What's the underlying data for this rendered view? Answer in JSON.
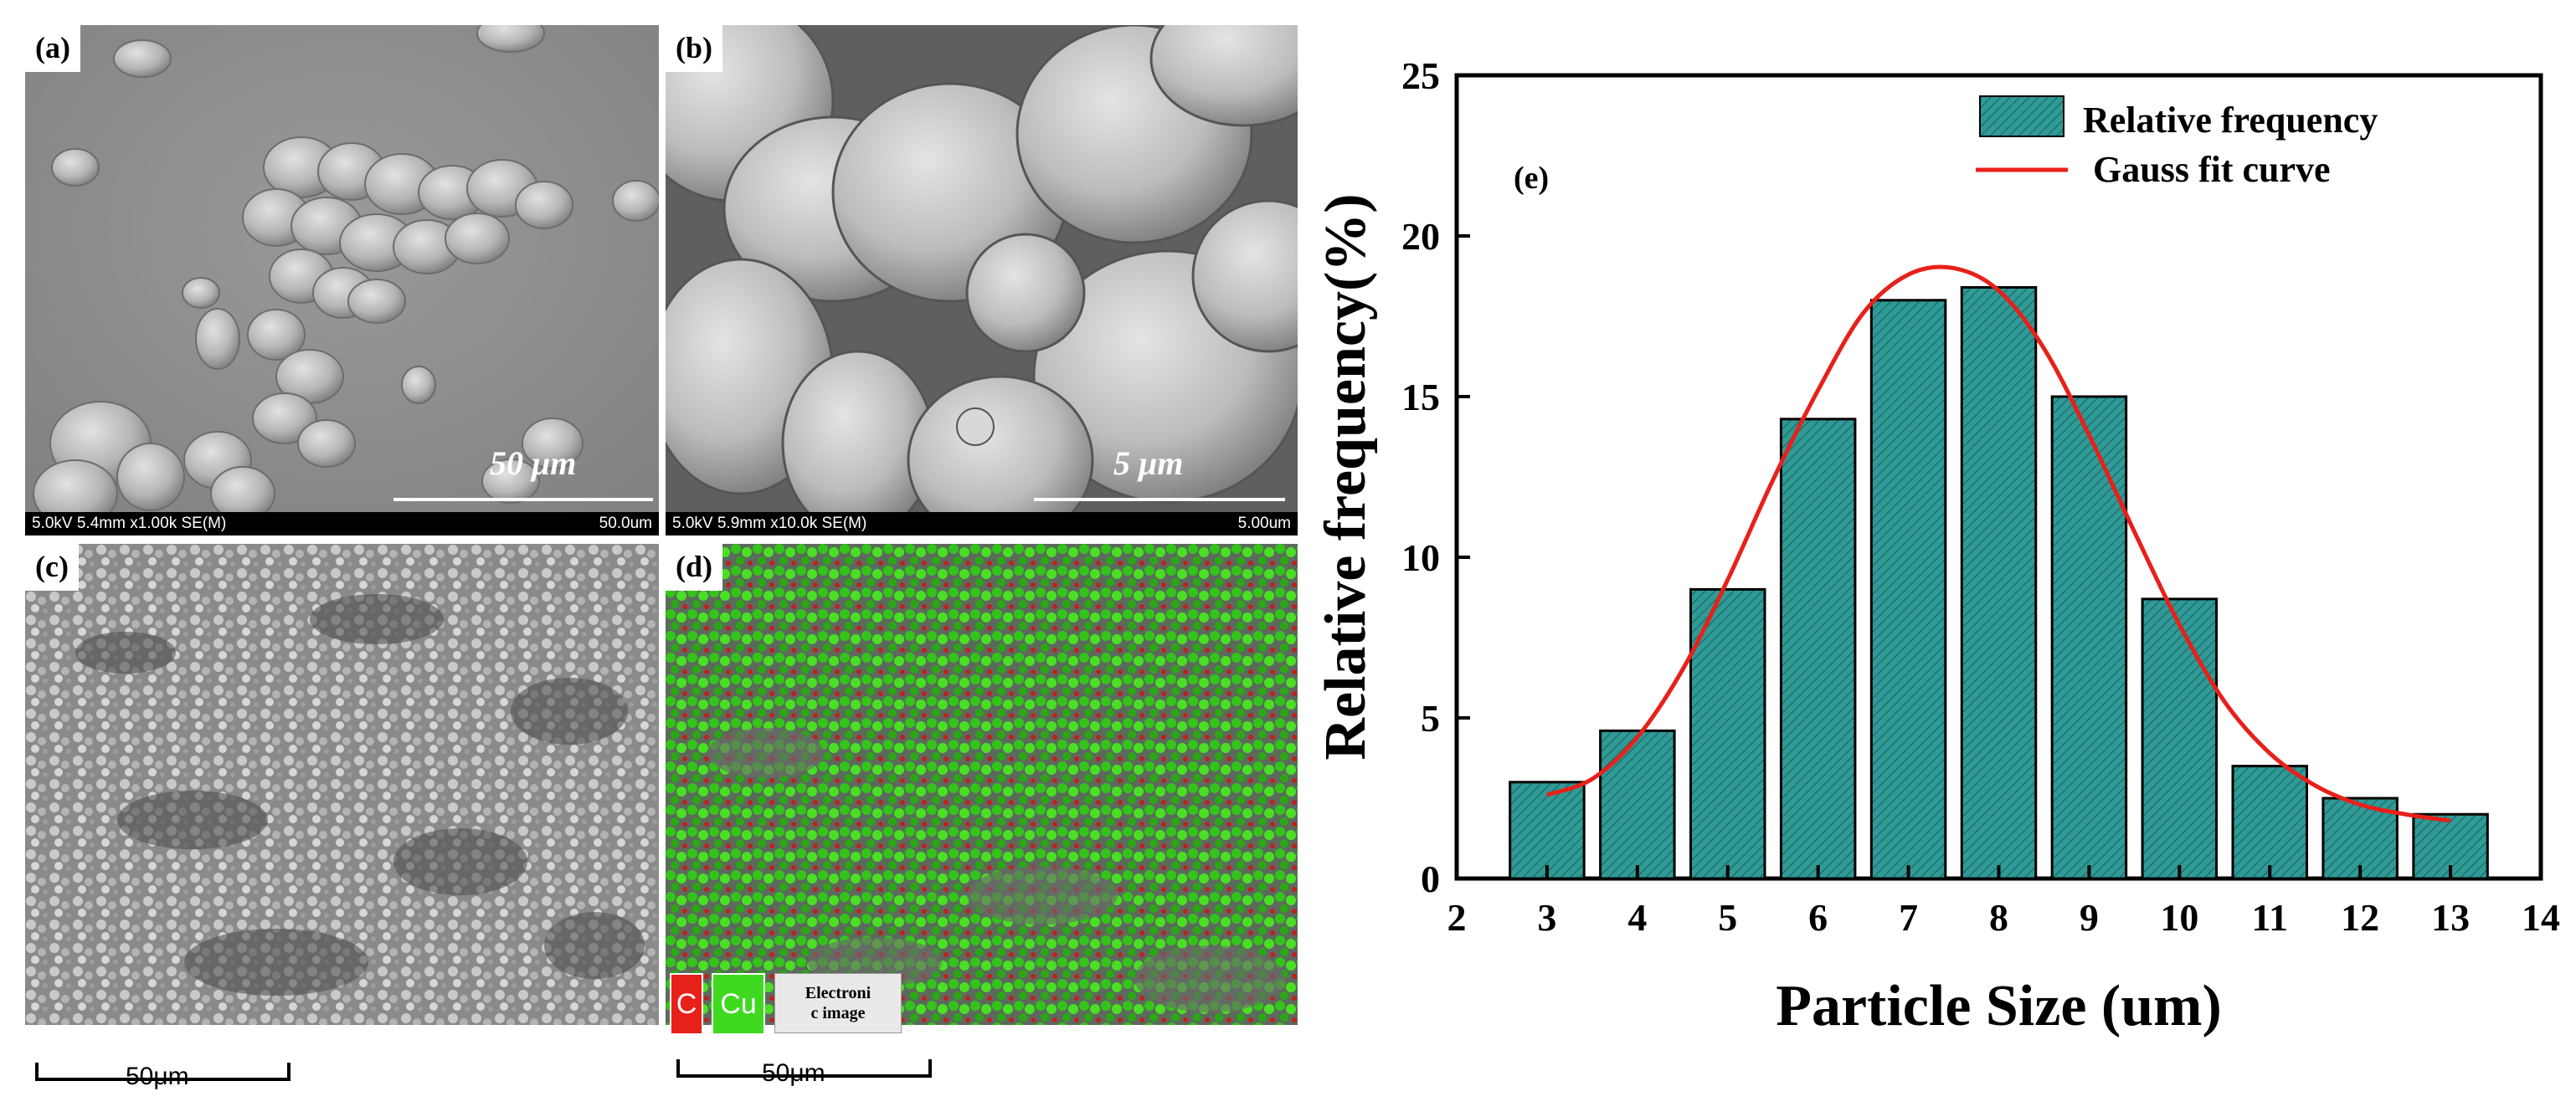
{
  "panels": {
    "a": {
      "label": "(a)",
      "info_left": "5.0kV 5.4mm x1.00k SE(M)",
      "info_right": "50.0um",
      "inset_scale": "50 μm"
    },
    "b": {
      "label": "(b)",
      "info_left": "5.0kV 5.9mm x10.0k SE(M)",
      "info_right": "5.00um",
      "inset_scale": "5 μm"
    },
    "c": {
      "label": "(c)",
      "scale_label": "50μm"
    },
    "d": {
      "label": "(d)",
      "scale_label": "50μm",
      "legend": {
        "c": "C",
        "cu": "Cu",
        "electron": "Electroni\nc image"
      },
      "colors": {
        "c": "#e8201a",
        "cu": "#3fd91f"
      }
    }
  },
  "chart_data": {
    "type": "bar",
    "panel_label": "(e)",
    "xlabel": "Particle Size (um)",
    "ylabel": "Relative frequency(%)",
    "xlim": [
      2,
      14
    ],
    "ylim": [
      0,
      25
    ],
    "xticks": [
      2,
      3,
      4,
      5,
      6,
      7,
      8,
      9,
      10,
      11,
      12,
      13,
      14
    ],
    "yticks": [
      0,
      5,
      10,
      15,
      20,
      25
    ],
    "categories": [
      3,
      4,
      5,
      6,
      7,
      8,
      9,
      10,
      11,
      12,
      13
    ],
    "series": [
      {
        "name": "Relative frequency",
        "values": [
          3.0,
          4.6,
          9.0,
          14.3,
          18.0,
          18.4,
          15.0,
          8.7,
          3.5,
          2.5,
          2.0
        ],
        "color": "#2f9a96"
      }
    ],
    "fit": {
      "name": "Gauss fit curve",
      "type": "gaussian",
      "color": "#e8201a",
      "x": [
        3.0,
        3.5,
        4.0,
        4.5,
        5.0,
        5.5,
        6.0,
        6.5,
        7.0,
        7.5,
        8.0,
        8.5,
        9.0,
        9.5,
        10.0,
        10.5,
        11.0,
        11.5,
        12.0,
        12.5,
        13.0
      ],
      "y": [
        2.6,
        3.1,
        4.4,
        6.5,
        9.3,
        12.4,
        15.2,
        17.6,
        18.8,
        19.0,
        18.3,
        16.5,
        13.8,
        10.8,
        7.9,
        5.5,
        3.9,
        2.9,
        2.3,
        2.0,
        1.8
      ]
    },
    "legend_position": "top-right",
    "grid": false
  }
}
